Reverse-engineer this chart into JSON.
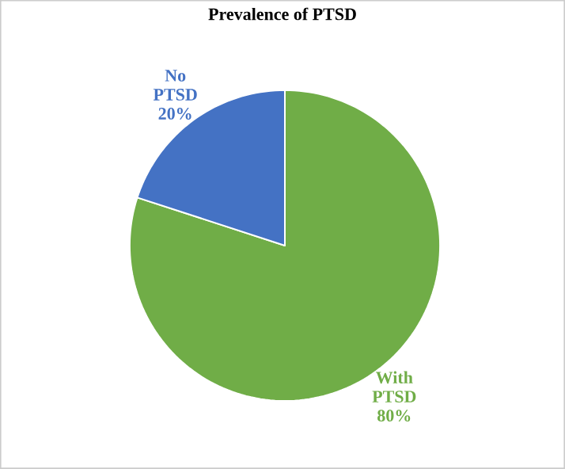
{
  "chart_data": {
    "type": "pie",
    "title": "Prevalence of PTSD",
    "categories": [
      "With PTSD",
      "No PTSD"
    ],
    "values": [
      80,
      20
    ],
    "colors": [
      "#70ad47",
      "#4472c4"
    ],
    "value_labels": [
      "80%",
      "20%"
    ]
  }
}
